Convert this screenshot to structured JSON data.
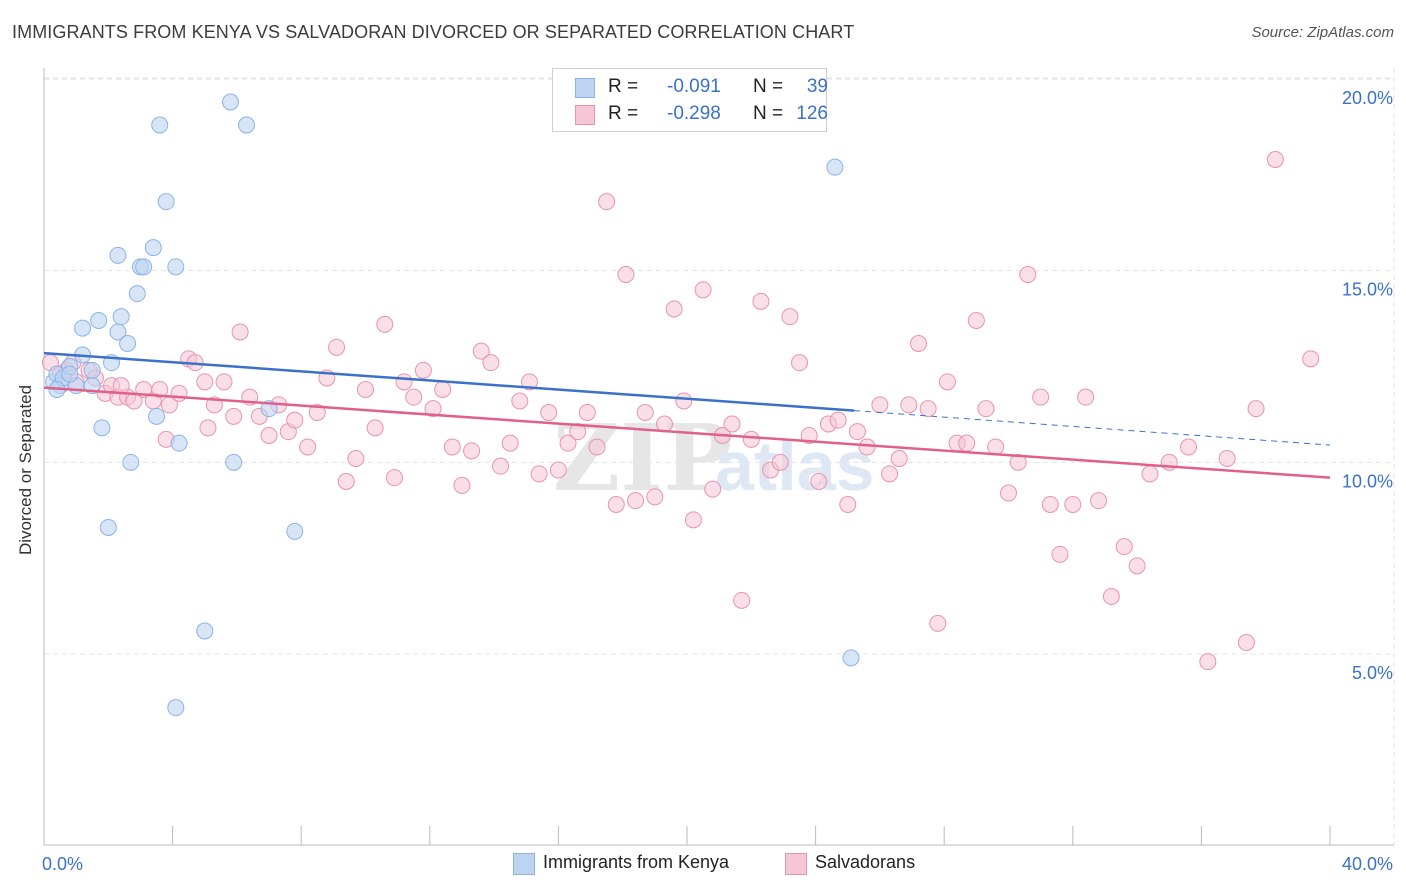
{
  "header": {
    "title": "IMMIGRANTS FROM KENYA VS SALVADORAN DIVORCED OR SEPARATED CORRELATION CHART",
    "source": "Source: ZipAtlas.com"
  },
  "watermark": {
    "part1": "ZIP",
    "part2": "atlas"
  },
  "legend": {
    "rows": [
      {
        "r_label": "R =",
        "r_value": "-0.091",
        "n_label": "N =",
        "n_value": "39",
        "color": "#8ab4e8",
        "fill": "#bcd4f2"
      },
      {
        "r_label": "R =",
        "r_value": "-0.298",
        "n_label": "N =",
        "n_value": "126",
        "color": "#e893b0",
        "fill": "#f6c5d6"
      }
    ]
  },
  "bottom_legend": [
    {
      "label": "Immigrants from Kenya",
      "color": "#8ab4e8",
      "fill": "#bcd4f2"
    },
    {
      "label": "Salvadorans",
      "color": "#e893b0",
      "fill": "#f6c5d6"
    }
  ],
  "chart_data": {
    "type": "scatter",
    "title": "IMMIGRANTS FROM KENYA VS SALVADORAN DIVORCED OR SEPARATED CORRELATION CHART",
    "ylabel": "Divorced or Separated",
    "xlim": [
      0,
      40
    ],
    "ylim": [
      0,
      20.5
    ],
    "x_tick_labels": [
      {
        "value": 0,
        "label": "0.0%"
      },
      {
        "value": 40,
        "label": "40.0%"
      }
    ],
    "y_tick_labels": [
      {
        "value": 5,
        "label": "5.0%"
      },
      {
        "value": 10,
        "label": "10.0%"
      },
      {
        "value": 15,
        "label": "15.0%"
      },
      {
        "value": 20,
        "label": "20.0%"
      }
    ],
    "grid": true,
    "legend_position": "top-center",
    "series": [
      {
        "name": "Immigrants from Kenya",
        "color": "#3a72c8",
        "marker_fill": "#bcd4f2",
        "marker_stroke": "#8ab4e8",
        "trend": {
          "x": [
            0,
            25.2
          ],
          "y": [
            12.85,
            11.35
          ],
          "dashed_extension_to": [
            40,
            10.45
          ]
        },
        "points": [
          [
            0.3,
            12.1
          ],
          [
            0.4,
            12.3
          ],
          [
            0.5,
            12.0
          ],
          [
            0.6,
            12.2
          ],
          [
            0.8,
            12.5
          ],
          [
            1.0,
            12.0
          ],
          [
            1.2,
            12.8
          ],
          [
            1.5,
            12.0
          ],
          [
            1.2,
            13.5
          ],
          [
            1.7,
            13.7
          ],
          [
            2.3,
            13.4
          ],
          [
            2.6,
            13.1
          ],
          [
            2.4,
            13.8
          ],
          [
            2.9,
            14.4
          ],
          [
            2.3,
            15.4
          ],
          [
            3.0,
            15.1
          ],
          [
            3.1,
            15.1
          ],
          [
            3.4,
            15.6
          ],
          [
            4.1,
            15.1
          ],
          [
            3.8,
            16.8
          ],
          [
            3.6,
            18.8
          ],
          [
            5.8,
            19.4
          ],
          [
            6.3,
            18.8
          ],
          [
            1.8,
            10.9
          ],
          [
            2.7,
            10.0
          ],
          [
            3.5,
            11.2
          ],
          [
            4.2,
            10.5
          ],
          [
            5.9,
            10.0
          ],
          [
            7.0,
            11.4
          ],
          [
            2.0,
            8.3
          ],
          [
            7.8,
            8.2
          ],
          [
            5.0,
            5.6
          ],
          [
            4.1,
            3.6
          ],
          [
            24.6,
            17.7
          ],
          [
            25.1,
            4.9
          ],
          [
            2.1,
            12.6
          ],
          [
            1.5,
            12.4
          ],
          [
            0.8,
            12.3
          ],
          [
            0.4,
            11.9
          ]
        ]
      },
      {
        "name": "Salvadorans",
        "color": "#e0608a",
        "marker_fill": "#f6c5d6",
        "marker_stroke": "#e893b0",
        "trend": {
          "x": [
            0,
            40
          ],
          "y": [
            11.95,
            9.6
          ]
        },
        "points": [
          [
            0.2,
            12.6
          ],
          [
            0.5,
            12.3
          ],
          [
            0.7,
            12.4
          ],
          [
            1.0,
            12.1
          ],
          [
            1.4,
            12.4
          ],
          [
            1.6,
            12.2
          ],
          [
            1.9,
            11.8
          ],
          [
            2.1,
            12.0
          ],
          [
            2.3,
            11.7
          ],
          [
            2.6,
            11.7
          ],
          [
            2.8,
            11.6
          ],
          [
            3.1,
            11.9
          ],
          [
            3.4,
            11.6
          ],
          [
            3.6,
            11.9
          ],
          [
            3.9,
            11.5
          ],
          [
            4.2,
            11.8
          ],
          [
            4.5,
            12.7
          ],
          [
            4.7,
            12.6
          ],
          [
            5.0,
            12.1
          ],
          [
            5.3,
            11.5
          ],
          [
            5.6,
            12.1
          ],
          [
            5.9,
            11.2
          ],
          [
            6.1,
            13.4
          ],
          [
            6.4,
            11.7
          ],
          [
            6.7,
            11.2
          ],
          [
            7.0,
            10.7
          ],
          [
            7.3,
            11.5
          ],
          [
            7.6,
            10.8
          ],
          [
            7.8,
            11.1
          ],
          [
            8.2,
            10.4
          ],
          [
            8.5,
            11.3
          ],
          [
            8.8,
            12.2
          ],
          [
            9.1,
            13.0
          ],
          [
            9.4,
            9.5
          ],
          [
            9.7,
            10.1
          ],
          [
            10.0,
            11.9
          ],
          [
            10.3,
            10.9
          ],
          [
            10.6,
            13.6
          ],
          [
            10.9,
            9.6
          ],
          [
            11.2,
            12.1
          ],
          [
            11.5,
            11.7
          ],
          [
            11.8,
            12.4
          ],
          [
            12.1,
            11.4
          ],
          [
            12.4,
            11.9
          ],
          [
            12.7,
            10.4
          ],
          [
            13.0,
            9.4
          ],
          [
            13.3,
            10.3
          ],
          [
            13.6,
            12.9
          ],
          [
            13.9,
            12.6
          ],
          [
            14.2,
            9.9
          ],
          [
            14.5,
            10.5
          ],
          [
            14.8,
            11.6
          ],
          [
            15.1,
            12.1
          ],
          [
            15.4,
            9.7
          ],
          [
            15.7,
            11.3
          ],
          [
            16.0,
            9.8
          ],
          [
            16.3,
            10.5
          ],
          [
            16.6,
            10.8
          ],
          [
            16.9,
            11.3
          ],
          [
            17.2,
            10.4
          ],
          [
            17.5,
            16.8
          ],
          [
            17.8,
            8.9
          ],
          [
            18.1,
            14.9
          ],
          [
            18.4,
            9.0
          ],
          [
            18.7,
            11.3
          ],
          [
            19.0,
            9.1
          ],
          [
            19.3,
            11.0
          ],
          [
            19.6,
            14.0
          ],
          [
            19.9,
            11.6
          ],
          [
            20.2,
            8.5
          ],
          [
            20.5,
            14.5
          ],
          [
            20.8,
            9.3
          ],
          [
            21.1,
            10.7
          ],
          [
            21.4,
            11.0
          ],
          [
            21.7,
            6.4
          ],
          [
            22.0,
            10.6
          ],
          [
            22.3,
            14.2
          ],
          [
            22.6,
            9.8
          ],
          [
            22.9,
            10.0
          ],
          [
            23.2,
            13.8
          ],
          [
            23.5,
            12.6
          ],
          [
            23.8,
            10.7
          ],
          [
            24.1,
            9.5
          ],
          [
            24.4,
            11.0
          ],
          [
            24.7,
            11.1
          ],
          [
            25.0,
            8.9
          ],
          [
            25.3,
            10.8
          ],
          [
            25.6,
            10.4
          ],
          [
            26.0,
            11.5
          ],
          [
            26.3,
            9.7
          ],
          [
            26.6,
            10.1
          ],
          [
            26.9,
            11.5
          ],
          [
            27.2,
            13.1
          ],
          [
            27.5,
            11.4
          ],
          [
            27.8,
            5.8
          ],
          [
            28.1,
            12.1
          ],
          [
            28.4,
            10.5
          ],
          [
            28.7,
            10.5
          ],
          [
            29.0,
            13.7
          ],
          [
            29.3,
            11.4
          ],
          [
            29.6,
            10.4
          ],
          [
            30.0,
            9.2
          ],
          [
            30.3,
            10.0
          ],
          [
            30.6,
            14.9
          ],
          [
            31.0,
            11.7
          ],
          [
            31.3,
            8.9
          ],
          [
            31.6,
            7.6
          ],
          [
            32.0,
            8.9
          ],
          [
            32.4,
            11.7
          ],
          [
            32.8,
            9.0
          ],
          [
            33.2,
            6.5
          ],
          [
            33.6,
            7.8
          ],
          [
            34.0,
            7.3
          ],
          [
            34.4,
            9.7
          ],
          [
            35.0,
            10.0
          ],
          [
            35.6,
            10.4
          ],
          [
            36.2,
            4.8
          ],
          [
            36.8,
            10.1
          ],
          [
            37.4,
            5.3
          ],
          [
            37.7,
            11.4
          ],
          [
            38.3,
            17.9
          ],
          [
            39.4,
            12.7
          ],
          [
            0.9,
            12.6
          ],
          [
            2.4,
            12.0
          ],
          [
            3.8,
            10.6
          ],
          [
            5.1,
            10.9
          ]
        ]
      }
    ]
  }
}
